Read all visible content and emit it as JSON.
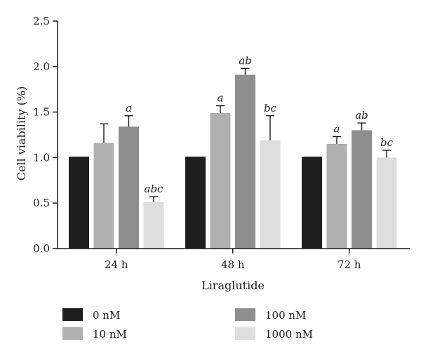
{
  "chart_data": {
    "type": "bar",
    "xlabel": "Liraglutide",
    "ylabel": "Cell viability (%)",
    "ylim": [
      0,
      2.5
    ],
    "yticks": [
      "0.0",
      "0.5",
      "1.0",
      "1.5",
      "2.0",
      "2.5"
    ],
    "categories": [
      "24 h",
      "48 h",
      "72 h"
    ],
    "grid": false,
    "legend_position": "bottom",
    "series": [
      {
        "name": "0 nM",
        "color": "#1e1e1e",
        "values": [
          1.01,
          1.01,
          1.01
        ],
        "errors": [
          0,
          0,
          0
        ],
        "annotations": [
          "",
          "",
          ""
        ]
      },
      {
        "name": "10 nM",
        "color": "#b0b0b0",
        "values": [
          1.16,
          1.49,
          1.15
        ],
        "errors": [
          0.21,
          0.08,
          0.08
        ],
        "annotations": [
          "",
          "a",
          "a"
        ]
      },
      {
        "name": "100 nM",
        "color": "#8e8e8e",
        "values": [
          1.34,
          1.91,
          1.3
        ],
        "errors": [
          0.12,
          0.07,
          0.08
        ],
        "annotations": [
          "a",
          "ab",
          "ab"
        ]
      },
      {
        "name": "1000 nM",
        "color": "#dedede",
        "values": [
          0.51,
          1.19,
          1.0
        ],
        "errors": [
          0.06,
          0.27,
          0.08
        ],
        "annotations": [
          "abc",
          "bc",
          "bc"
        ]
      }
    ]
  }
}
